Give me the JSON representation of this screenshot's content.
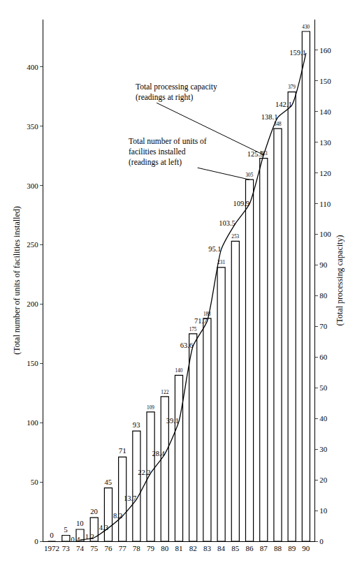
{
  "chart_data": {
    "type": "bar",
    "categories": [
      "1972",
      "73",
      "74",
      "75",
      "76",
      "77",
      "78",
      "79",
      "80",
      "81",
      "82",
      "83",
      "84",
      "85",
      "86",
      "87",
      "88",
      "89",
      "90"
    ],
    "series": [
      {
        "name": "Total number of units of facilities installed",
        "type": "bar",
        "axis": "y",
        "color": "#ffffff",
        "values": [
          0,
          5,
          10,
          20,
          45,
          71,
          93,
          109,
          122,
          140,
          175,
          188,
          231,
          253,
          305,
          323,
          348,
          379,
          430
        ]
      },
      {
        "name": "Total processing capacity",
        "type": "line",
        "axis": "y2",
        "color": "#000000",
        "marker": "none",
        "line_style": "solid",
        "values": [
          null,
          null,
          0.4,
          1.2,
          4.3,
          8.2,
          13.7,
          22.2,
          28.4,
          39.1,
          63.6,
          71.7,
          95.1,
          103.5,
          109.9,
          125.9,
          138.1,
          142.1,
          159.1
        ]
      }
    ],
    "ylabel": "(Total number of units of facilities installed)",
    "y2label": "(Total processing capacity)",
    "ylim": [
      0,
      440
    ],
    "yticks": [
      0,
      50,
      100,
      150,
      200,
      250,
      300,
      350,
      400
    ],
    "y2lim": [
      0,
      170
    ],
    "y2ticks": [
      0,
      10,
      20,
      30,
      40,
      50,
      60,
      70,
      80,
      90,
      100,
      110,
      120,
      130,
      140,
      150,
      160
    ],
    "annotations": [
      {
        "text": [
          "Total processing capacity",
          "(readings at right)"
        ],
        "category": "87",
        "axis": "y2"
      },
      {
        "text": [
          "Total number of units of",
          "facilities installed",
          "(readings at left)"
        ],
        "category": "86",
        "axis": "y"
      }
    ],
    "data_labels": true,
    "grid": false,
    "legend": "none"
  }
}
